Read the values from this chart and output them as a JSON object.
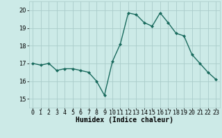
{
  "x": [
    0,
    1,
    2,
    3,
    4,
    5,
    6,
    7,
    8,
    9,
    10,
    11,
    12,
    13,
    14,
    15,
    16,
    17,
    18,
    19,
    20,
    21,
    22,
    23
  ],
  "y": [
    17.0,
    16.9,
    17.0,
    16.6,
    16.7,
    16.7,
    16.6,
    16.5,
    16.0,
    15.2,
    17.1,
    18.1,
    19.85,
    19.75,
    19.3,
    19.1,
    19.85,
    19.3,
    18.7,
    18.55,
    17.5,
    17.0,
    16.5,
    16.1
  ],
  "line_color": "#1a6b5e",
  "marker": "D",
  "marker_size": 2.0,
  "linewidth": 1.0,
  "bg_color": "#cceae7",
  "grid_color": "#aaccca",
  "xlabel": "Humidex (Indice chaleur)",
  "ylim": [
    14.5,
    20.5
  ],
  "xlim": [
    -0.5,
    23.5
  ],
  "yticks": [
    15,
    16,
    17,
    18,
    19,
    20
  ],
  "xticks": [
    0,
    1,
    2,
    3,
    4,
    5,
    6,
    7,
    8,
    9,
    10,
    11,
    12,
    13,
    14,
    15,
    16,
    17,
    18,
    19,
    20,
    21,
    22,
    23
  ],
  "xlabel_fontsize": 7.0,
  "tick_fontsize": 6.0
}
